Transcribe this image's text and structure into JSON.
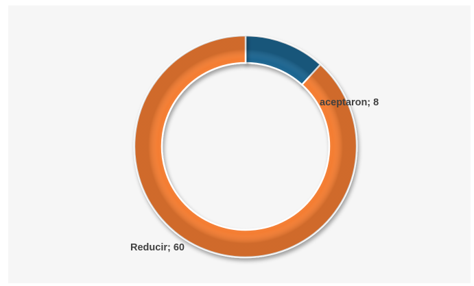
{
  "chart_data": {
    "type": "pie",
    "donut": true,
    "title": "",
    "slices": [
      {
        "label": "aceptaron",
        "value": 8,
        "color": "#1f6590",
        "data_label": "aceptaron; 8"
      },
      {
        "label": "Reducir",
        "value": 60,
        "color": "#f47d32",
        "data_label": "Reducir; 60"
      }
    ],
    "legend": "none",
    "background": "#f6f6f6"
  }
}
